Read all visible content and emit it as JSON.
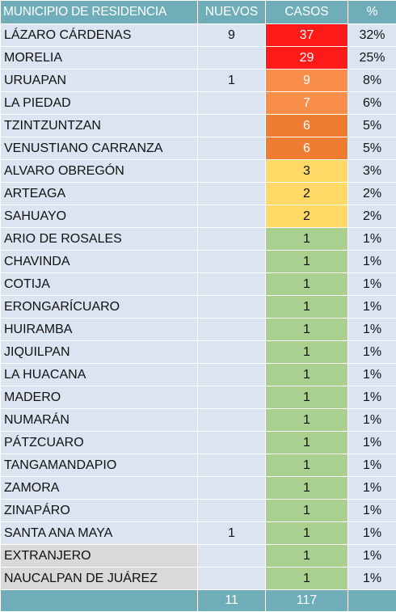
{
  "headers": {
    "municipio": "MUNICIPIO DE RESIDENCIA",
    "nuevos": "NUEVOS",
    "casos": "CASOS",
    "pct": "%"
  },
  "colors": {
    "header_bg": "#6fadb8",
    "row_bg": "#dbe5f1",
    "gray_bg": "#d9d9d9",
    "red": "#ff1a1a",
    "orange_light": "#f98e48",
    "orange_dark": "#ee7d31",
    "yellow": "#ffd966",
    "green": "#a9d08e"
  },
  "rows": [
    {
      "municipio": "LÁZARO CÁRDENAS",
      "nuevos": "9",
      "casos": "37",
      "pct": "32%",
      "color": "#ff1a1a",
      "text_color": "#ffffff",
      "gray": false
    },
    {
      "municipio": "MORELIA",
      "nuevos": "",
      "casos": "29",
      "pct": "25%",
      "color": "#ff1a1a",
      "text_color": "#ffffff",
      "gray": false
    },
    {
      "municipio": "URUAPAN",
      "nuevos": "1",
      "casos": "9",
      "pct": "8%",
      "color": "#f98e48",
      "text_color": "#ffffff",
      "gray": false
    },
    {
      "municipio": "LA PIEDAD",
      "nuevos": "",
      "casos": "7",
      "pct": "6%",
      "color": "#f98e48",
      "text_color": "#ffffff",
      "gray": false
    },
    {
      "municipio": "TZINTZUNTZAN",
      "nuevos": "",
      "casos": "6",
      "pct": "5%",
      "color": "#ee7d31",
      "text_color": "#ffffff",
      "gray": false
    },
    {
      "municipio": "VENUSTIANO CARRANZA",
      "nuevos": "",
      "casos": "6",
      "pct": "5%",
      "color": "#ee7d31",
      "text_color": "#ffffff",
      "gray": false
    },
    {
      "municipio": "ALVARO OBREGÓN",
      "nuevos": "",
      "casos": "3",
      "pct": "3%",
      "color": "#ffd966",
      "text_color": "#111111",
      "gray": false
    },
    {
      "municipio": "ARTEAGA",
      "nuevos": "",
      "casos": "2",
      "pct": "2%",
      "color": "#ffd966",
      "text_color": "#111111",
      "gray": false
    },
    {
      "municipio": "SAHUAYO",
      "nuevos": "",
      "casos": "2",
      "pct": "2%",
      "color": "#ffd966",
      "text_color": "#111111",
      "gray": false
    },
    {
      "municipio": "ARIO DE ROSALES",
      "nuevos": "",
      "casos": "1",
      "pct": "1%",
      "color": "#a9d08e",
      "text_color": "#111111",
      "gray": false
    },
    {
      "municipio": "CHAVINDA",
      "nuevos": "",
      "casos": "1",
      "pct": "1%",
      "color": "#a9d08e",
      "text_color": "#111111",
      "gray": false
    },
    {
      "municipio": "COTIJA",
      "nuevos": "",
      "casos": "1",
      "pct": "1%",
      "color": "#a9d08e",
      "text_color": "#111111",
      "gray": false
    },
    {
      "municipio": "ERONGARÍCUARO",
      "nuevos": "",
      "casos": "1",
      "pct": "1%",
      "color": "#a9d08e",
      "text_color": "#111111",
      "gray": false
    },
    {
      "municipio": "HUIRAMBA",
      "nuevos": "",
      "casos": "1",
      "pct": "1%",
      "color": "#a9d08e",
      "text_color": "#111111",
      "gray": false
    },
    {
      "municipio": "JIQUILPAN",
      "nuevos": "",
      "casos": "1",
      "pct": "1%",
      "color": "#a9d08e",
      "text_color": "#111111",
      "gray": false
    },
    {
      "municipio": "LA HUACANA",
      "nuevos": "",
      "casos": "1",
      "pct": "1%",
      "color": "#a9d08e",
      "text_color": "#111111",
      "gray": false
    },
    {
      "municipio": "MADERO",
      "nuevos": "",
      "casos": "1",
      "pct": "1%",
      "color": "#a9d08e",
      "text_color": "#111111",
      "gray": false
    },
    {
      "municipio": "NUMARÁN",
      "nuevos": "",
      "casos": "1",
      "pct": "1%",
      "color": "#a9d08e",
      "text_color": "#111111",
      "gray": false
    },
    {
      "municipio": "PÁTZCUARO",
      "nuevos": "",
      "casos": "1",
      "pct": "1%",
      "color": "#a9d08e",
      "text_color": "#111111",
      "gray": false
    },
    {
      "municipio": "TANGAMANDAPIO",
      "nuevos": "",
      "casos": "1",
      "pct": "1%",
      "color": "#a9d08e",
      "text_color": "#111111",
      "gray": false
    },
    {
      "municipio": "ZAMORA",
      "nuevos": "",
      "casos": "1",
      "pct": "1%",
      "color": "#a9d08e",
      "text_color": "#111111",
      "gray": false
    },
    {
      "municipio": "ZINAPÁRO",
      "nuevos": "",
      "casos": "1",
      "pct": "1%",
      "color": "#a9d08e",
      "text_color": "#111111",
      "gray": false
    },
    {
      "municipio": "SANTA ANA MAYA",
      "nuevos": "1",
      "casos": "1",
      "pct": "1%",
      "color": "#a9d08e",
      "text_color": "#111111",
      "gray": false
    },
    {
      "municipio": "EXTRANJERO",
      "nuevos": "",
      "casos": "1",
      "pct": "1%",
      "color": "#a9d08e",
      "text_color": "#111111",
      "gray": true
    },
    {
      "municipio": "NAUCALPAN DE JUÁREZ",
      "nuevos": "",
      "casos": "1",
      "pct": "1%",
      "color": "#a9d08e",
      "text_color": "#111111",
      "gray": true
    }
  ],
  "totals": {
    "label": "",
    "nuevos": "11",
    "casos": "117",
    "pct": ""
  }
}
